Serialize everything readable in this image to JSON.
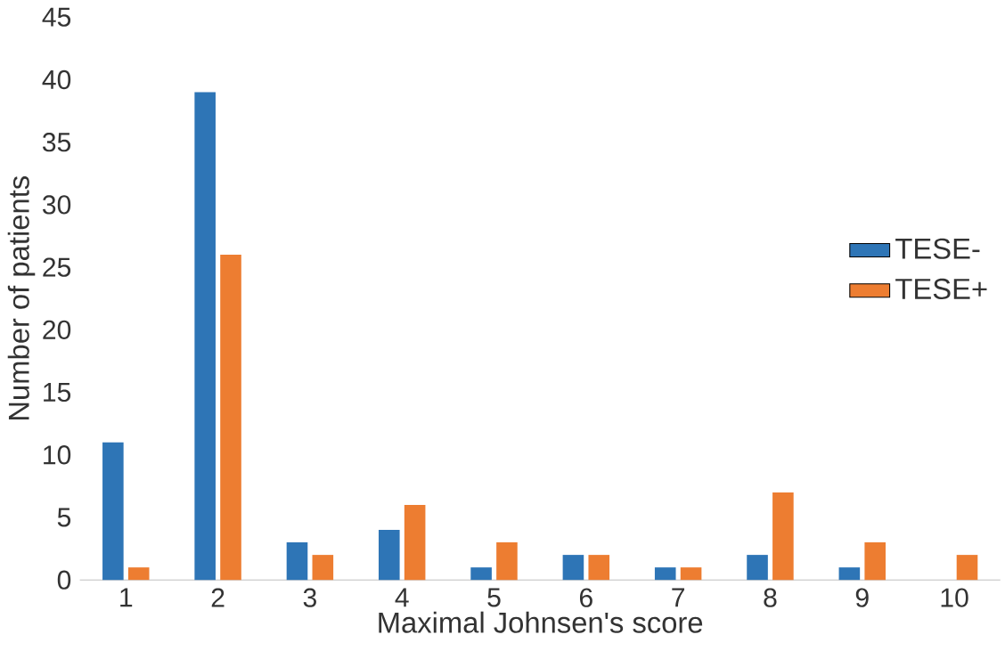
{
  "chart_data": {
    "type": "bar",
    "xlabel": "Maximal Johnsen's score",
    "ylabel": "Number of patients",
    "categories": [
      "1",
      "2",
      "3",
      "4",
      "5",
      "6",
      "7",
      "8",
      "9",
      "10"
    ],
    "series": [
      {
        "name": "TESE-",
        "color": "#2e75b6",
        "values": [
          11,
          39,
          3,
          4,
          1,
          2,
          1,
          2,
          1,
          0
        ]
      },
      {
        "name": "TESE+",
        "color": "#ed7d31",
        "values": [
          1,
          26,
          2,
          6,
          3,
          2,
          1,
          7,
          3,
          2
        ]
      }
    ],
    "ylim": [
      0,
      45
    ],
    "yticks": [
      0,
      5,
      10,
      15,
      20,
      25,
      30,
      35,
      40,
      45
    ],
    "legend": "right",
    "grid": false
  }
}
